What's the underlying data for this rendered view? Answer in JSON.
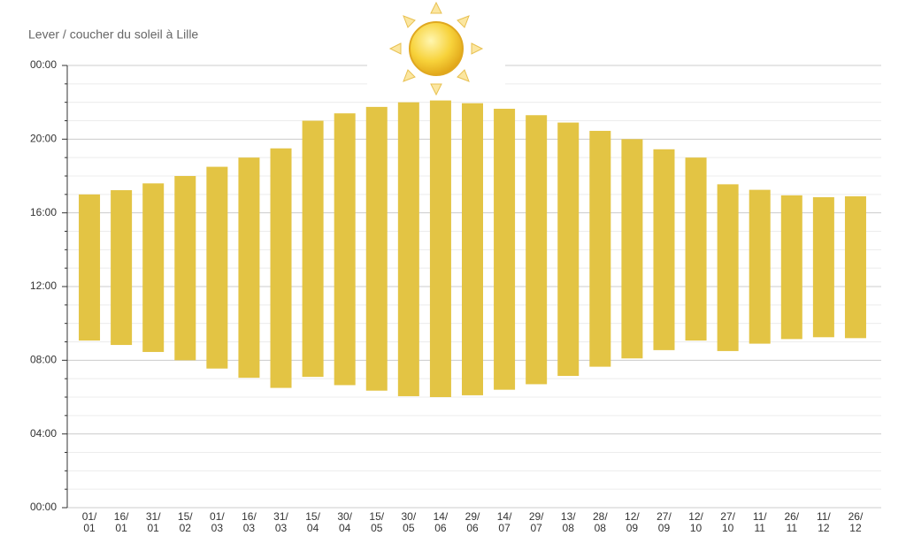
{
  "chart_data": {
    "type": "range-bar",
    "title": "Lever / coucher du soleil à Lille",
    "color": "#e3c444",
    "categories": [
      "01/01",
      "16/01",
      "31/01",
      "15/02",
      "01/03",
      "16/03",
      "31/03",
      "15/04",
      "30/04",
      "15/05",
      "30/05",
      "14/06",
      "29/06",
      "14/07",
      "29/07",
      "13/08",
      "28/08",
      "12/09",
      "27/09",
      "12/10",
      "27/10",
      "11/11",
      "26/11",
      "11/12",
      "26/12"
    ],
    "low": [
      9.07,
      8.83,
      8.45,
      8.0,
      7.55,
      7.05,
      6.5,
      7.1,
      6.65,
      6.35,
      6.05,
      6.0,
      6.1,
      6.4,
      6.7,
      7.15,
      7.65,
      8.1,
      8.55,
      9.07,
      8.5,
      8.9,
      9.15,
      9.25,
      9.2
    ],
    "high": [
      17.0,
      17.23,
      17.6,
      18.0,
      18.5,
      19.0,
      19.5,
      21.0,
      21.4,
      21.75,
      22.0,
      22.1,
      21.95,
      21.65,
      21.3,
      20.9,
      20.45,
      20.0,
      19.45,
      19.0,
      17.55,
      17.25,
      16.95,
      16.85,
      16.9
    ],
    "ylim": [
      0,
      24
    ],
    "yticks": [
      {
        "value": 0,
        "label": "00:00"
      },
      {
        "value": 4,
        "label": "04:00"
      },
      {
        "value": 8,
        "label": "08:00"
      },
      {
        "value": 12,
        "label": "12:00"
      },
      {
        "value": 16,
        "label": "16:00"
      },
      {
        "value": 20,
        "label": "20:00"
      },
      {
        "value": 24,
        "label": "00:00"
      }
    ],
    "minor_yticks": [
      1,
      2,
      3,
      5,
      6,
      7,
      9,
      10,
      11,
      13,
      14,
      15,
      17,
      18,
      19,
      21,
      22,
      23
    ],
    "grid": true
  }
}
